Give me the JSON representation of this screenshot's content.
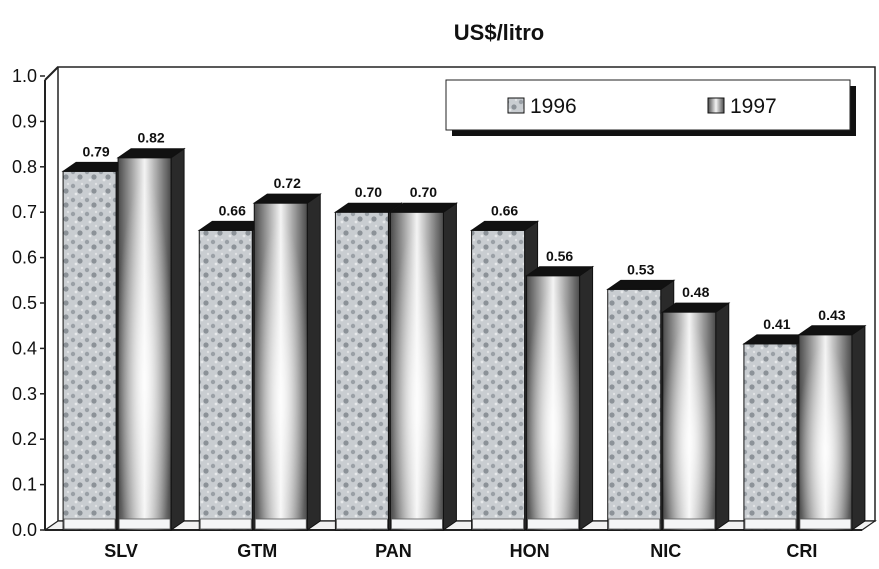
{
  "chart_data": {
    "type": "bar",
    "title": "US$/litro",
    "categories": [
      "SLV",
      "GTM",
      "PAN",
      "HON",
      "NIC",
      "CRI"
    ],
    "series": [
      {
        "name": "1996",
        "values": [
          0.79,
          0.66,
          0.7,
          0.66,
          0.53,
          0.41
        ]
      },
      {
        "name": "1997",
        "values": [
          0.82,
          0.72,
          0.7,
          0.56,
          0.48,
          0.43
        ]
      }
    ],
    "data_labels": {
      "1996": [
        "0.79",
        "0.66",
        "0.70",
        "0.66",
        "0.53",
        "0.41"
      ],
      "1997": [
        "0.82",
        "0.72",
        "0.70",
        "0.56",
        "0.48",
        "0.43"
      ]
    },
    "ylim": [
      0,
      1.0
    ],
    "yticks": [
      "0.0",
      "0.1",
      "0.2",
      "0.3",
      "0.4",
      "0.5",
      "0.6",
      "0.7",
      "0.8",
      "0.9",
      "1.0"
    ],
    "xlabel": "",
    "ylabel": "",
    "grid": false,
    "legend_position": "top-right",
    "style": "3d-bar",
    "colors": {
      "series_1996": "#c8ccd0",
      "series_1997": "#6e6e6e",
      "bar_top": "#111111",
      "bar_side": "#2a2a2a",
      "axis": "#222222"
    }
  }
}
